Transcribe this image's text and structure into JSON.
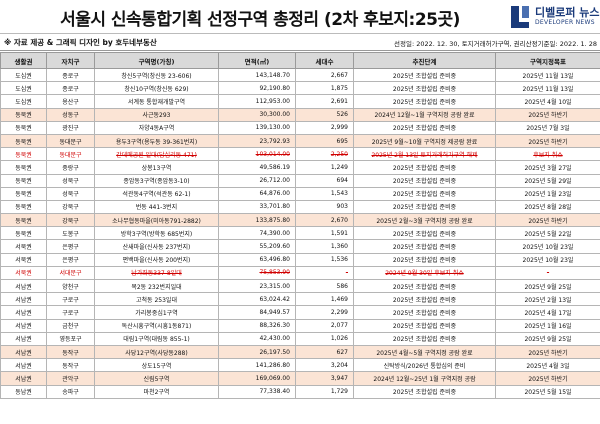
{
  "title": "서울시 신속통합기획 선정구역 총정리 (2차 후보지:25곳)",
  "logo": {
    "name": "디벨로퍼 뉴스",
    "sub": "DEVELOPER NEWS",
    "color": "#1a3a7a"
  },
  "credit": "※ 자료 제공 & 그래픽 디자인 by 호두네부동산",
  "dates": "선정일: 2022. 12. 30, 토지거래허가구역, 권리산정기준일: 2022. 1. 28",
  "headers": [
    "생활권",
    "자치구",
    "구역명(가칭)",
    "면적(㎡)",
    "세대수",
    "추진단계",
    "구역지정목표"
  ],
  "colors": {
    "highlight": "#fbe4d5",
    "cancel": "#d00000",
    "header": "#d9d9d9"
  },
  "rows": [
    {
      "area": "도심권",
      "gu": "종로구",
      "name": "창신5구역(창신동 23-606)",
      "size": "143,148.70",
      "units": "2,667",
      "stage": "2025년 조합설립 준비중",
      "target": "2025년 11월 13일",
      "style": ""
    },
    {
      "area": "도심권",
      "gu": "종로구",
      "name": "창신10구역(창신동 629)",
      "size": "92,190.80",
      "units": "1,875",
      "stage": "2025년 조합설립 준비중",
      "target": "2025년 11월 13일",
      "style": ""
    },
    {
      "area": "도심권",
      "gu": "용산구",
      "name": "서계동 통합재개발구역",
      "size": "112,953.00",
      "units": "2,691",
      "stage": "2025년 조합설립 준비중",
      "target": "2025년 4월 10일",
      "style": ""
    },
    {
      "area": "동북권",
      "gu": "성동구",
      "name": "사근동293",
      "size": "30,300.00",
      "units": "526",
      "stage": "2024년 12월~1월 구역지정 공람 완료",
      "target": "2025년 하반기",
      "style": "hl"
    },
    {
      "area": "동북권",
      "gu": "광진구",
      "name": "자양4동A구역",
      "size": "139,130.00",
      "units": "2,999",
      "stage": "2025년 조합설립 준비중",
      "target": "2025년 7월 3일",
      "style": ""
    },
    {
      "area": "동북권",
      "gu": "동대문구",
      "name": "용두3구역(용두동 39-361번지)",
      "size": "23,792.93",
      "units": "695",
      "stage": "2025년 9월~10월 구역지정 제공람 완료",
      "target": "2025년 하반기",
      "style": "hl"
    },
    {
      "area": "동북권",
      "gu": "동대문구",
      "name": "간데메공원 일대(답십리동 471)",
      "size": "103,014.00",
      "units": "2,250",
      "stage": "2025년 2월 13일 토지거래허가구역 해제",
      "target": "후보지 취소",
      "style": "cancel"
    },
    {
      "area": "동북권",
      "gu": "중랑구",
      "name": "상봉13구역",
      "size": "49,586.19",
      "units": "1,249",
      "stage": "2025년 조합설립 준비중",
      "target": "2025년 3월 27일",
      "style": ""
    },
    {
      "area": "동북권",
      "gu": "성북구",
      "name": "종암동3구역(종암동3-10)",
      "size": "26,712.00",
      "units": "694",
      "stage": "2025년 조합설립 준비중",
      "target": "2025년 5월 29일",
      "style": ""
    },
    {
      "area": "동북권",
      "gu": "성북구",
      "name": "석관동4구역(석관동 62-1)",
      "size": "64,876.00",
      "units": "1,543",
      "stage": "2025년 조합설립 준비중",
      "target": "2025년 1월 23일",
      "style": ""
    },
    {
      "area": "동북권",
      "gu": "강북구",
      "name": "번동 441-3번지",
      "size": "33,701.80",
      "units": "903",
      "stage": "2025년 조합설립 준비중",
      "target": "2025년 8월 28일",
      "style": ""
    },
    {
      "area": "동북권",
      "gu": "강북구",
      "name": "소나무협동마을(미아동791-2882)",
      "size": "133,875.80",
      "units": "2,670",
      "stage": "2025년 2월~3월 구역지정 공람 완료",
      "target": "2025년 하반기",
      "style": "hl"
    },
    {
      "area": "동북권",
      "gu": "도봉구",
      "name": "방학3구역(방학동 685번지)",
      "size": "74,390.00",
      "units": "1,591",
      "stage": "2025년 조합설립 준비중",
      "target": "2025년 5월 22일",
      "style": ""
    },
    {
      "area": "서북권",
      "gu": "은평구",
      "name": "산새마을(신사동 237번지)",
      "size": "55,209.60",
      "units": "1,360",
      "stage": "2025년 조합설립 준비중",
      "target": "2025년 10월 23일",
      "style": ""
    },
    {
      "area": "서북권",
      "gu": "은평구",
      "name": "편백마을(신사동 200번지)",
      "size": "63,496.80",
      "units": "1,536",
      "stage": "2025년 조합설립 준비중",
      "target": "2025년 10월 23일",
      "style": ""
    },
    {
      "area": "서북권",
      "gu": "서대문구",
      "name": "남가좌동337-8일대",
      "size": "75,853.90",
      "units": "-",
      "stage": "2024년 9월 30일 후보지 취소",
      "target": "-",
      "style": "cancel"
    },
    {
      "area": "서남권",
      "gu": "양천구",
      "name": "목2동 232번지일대",
      "size": "23,315.00",
      "units": "586",
      "stage": "2025년 조합설립 준비중",
      "target": "2025년 9월 25일",
      "style": ""
    },
    {
      "area": "서남권",
      "gu": "구로구",
      "name": "고척동 253일대",
      "size": "63,024.42",
      "units": "1,469",
      "stage": "2025년 조합설립 준비중",
      "target": "2025년 2월 13일",
      "style": ""
    },
    {
      "area": "서남권",
      "gu": "구로구",
      "name": "가리봉중심1구역",
      "size": "84,949.57",
      "units": "2,299",
      "stage": "2025년 조합설립 준비중",
      "target": "2025년 4월 17일",
      "style": ""
    },
    {
      "area": "서남권",
      "gu": "금천구",
      "name": "독산시흥구역(시흥1동871)",
      "size": "88,326.30",
      "units": "2,077",
      "stage": "2025년 조합설립 준비중",
      "target": "2025년 1월 16일",
      "style": ""
    },
    {
      "area": "서남권",
      "gu": "영등포구",
      "name": "대림1구역(대림동 855-1)",
      "size": "42,430.00",
      "units": "1,026",
      "stage": "2025년 조합설립 준비중",
      "target": "2025년 9월 25일",
      "style": ""
    },
    {
      "area": "서남권",
      "gu": "동작구",
      "name": "사당12구역(사당동288)",
      "size": "26,197.50",
      "units": "627",
      "stage": "2025년 4월~5월 구역지정 공람 완료",
      "target": "2025년 하반기",
      "style": "hl"
    },
    {
      "area": "서남권",
      "gu": "동작구",
      "name": "상도15구역",
      "size": "141,286.80",
      "units": "3,204",
      "stage": "신탁방식/2026년 통합심의 준비",
      "target": "2025년 4월 3일",
      "style": ""
    },
    {
      "area": "서남권",
      "gu": "관악구",
      "name": "신림5구역",
      "size": "169,069.00",
      "units": "3,947",
      "stage": "2024년 12월~25년 1월 구역지정 공람",
      "target": "2025년 하반기",
      "style": "hl"
    },
    {
      "area": "동남권",
      "gu": "송파구",
      "name": "마천2구역",
      "size": "77,338.40",
      "units": "1,729",
      "stage": "2025년 조합설립 준비중",
      "target": "2025년 5월 15일",
      "style": ""
    }
  ]
}
